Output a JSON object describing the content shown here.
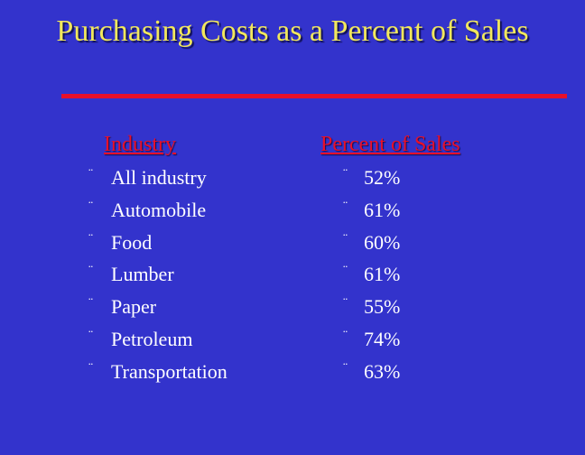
{
  "header": {
    "title": "Purchasing Costs as a Percent of Sales"
  },
  "table": {
    "bullet": "¨",
    "columns": [
      "Industry",
      "Percent of Sales"
    ],
    "rows": [
      [
        "All industry",
        "52%"
      ],
      [
        "Automobile",
        "61%"
      ],
      [
        "Food",
        "60%"
      ],
      [
        "Lumber",
        "61%"
      ],
      [
        "Paper",
        "55%"
      ],
      [
        "Petroleum",
        "74%"
      ],
      [
        "Transportation",
        "63%"
      ]
    ]
  }
}
